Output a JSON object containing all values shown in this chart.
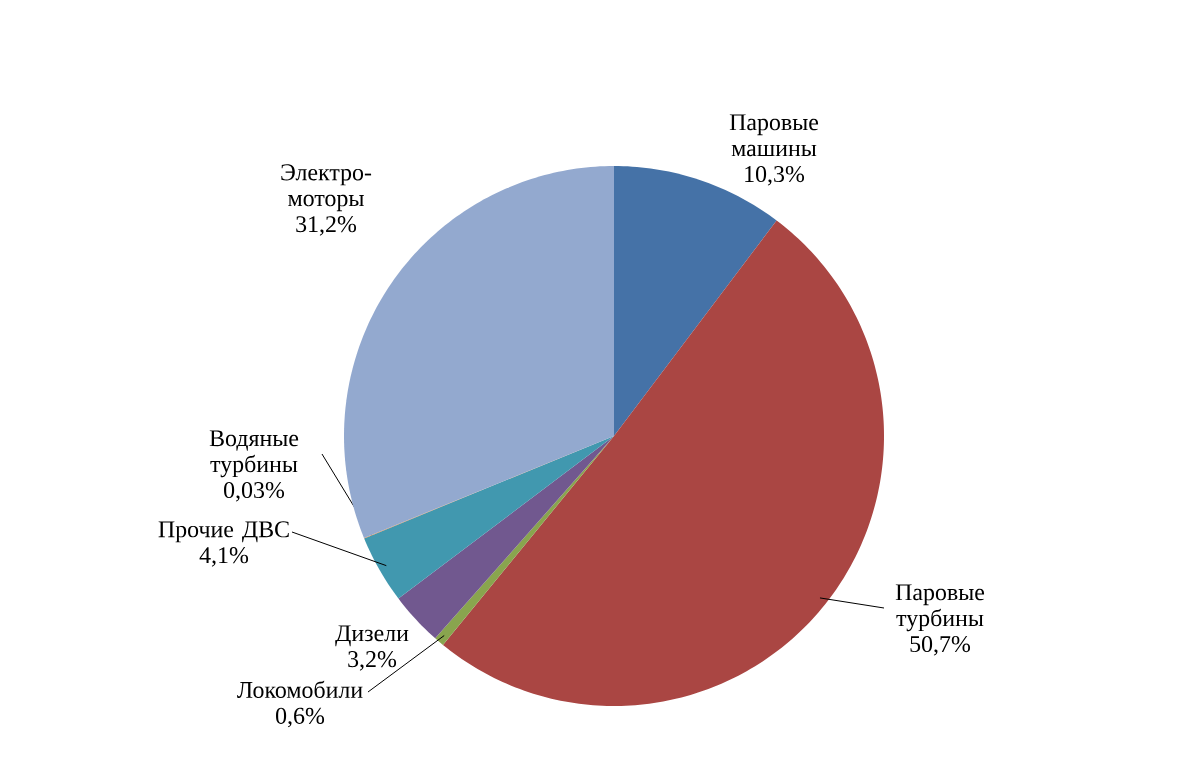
{
  "chart_data": {
    "type": "pie",
    "categories": [
      "Паровые машины",
      "Паровые турбины",
      "Локомобили",
      "Дизели",
      "Прочие ДВС",
      "Водяные турбины",
      "Электро-моторы"
    ],
    "values": [
      10.3,
      50.7,
      0.6,
      3.2,
      4.1,
      0.03,
      31.2
    ],
    "value_labels": [
      "10,3%",
      "50,7%",
      "0,6%",
      "3,2%",
      "4,1%",
      "0,03%",
      "31,2%"
    ],
    "colors": [
      "#4572a7",
      "#aa4643",
      "#89a54e",
      "#71588f",
      "#4198af",
      "#db843d",
      "#93a9cf"
    ]
  }
}
